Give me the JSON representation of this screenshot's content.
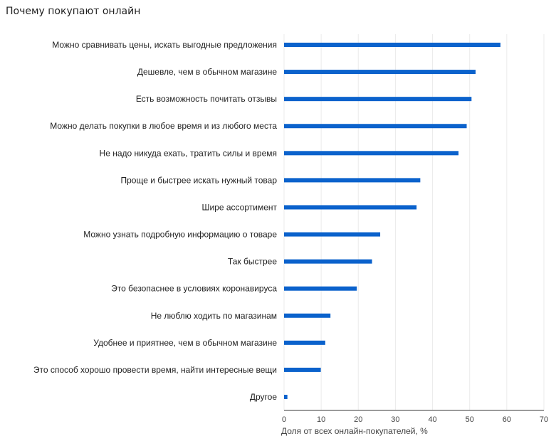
{
  "chart_data": {
    "type": "bar",
    "orientation": "horizontal",
    "title": "Почему покупают онлайн",
    "xlabel": "Доля от всех онлайн-покупателей, %",
    "ylabel": "",
    "xlim": [
      0,
      70
    ],
    "xticks": [
      0,
      10,
      20,
      30,
      40,
      50,
      60,
      70
    ],
    "grid": true,
    "legend": "none",
    "bar_color": "#0b62cc",
    "categories": [
      "Можно сравнивать цены, искать выгодные предложения",
      "Дешевле, чем в обычном магазине",
      "Есть возможность почитать отзывы",
      "Можно делать покупки в любое время и из любого места",
      "Не надо никуда ехать, тратить силы и время",
      "Проще и быстрее искать нужный товар",
      "Шире ассортимент",
      "Можно узнать подробную информацию о товаре",
      "Так быстрее",
      "Это безопаснее в условиях коронавируса",
      "Не люблю ходить по магазинам",
      "Удобнее и приятнее, чем в обычном магазине",
      "Это способ хорошо провести время, найти интересные вещи",
      "Другое"
    ],
    "values": [
      58.3,
      51.6,
      50.5,
      49.2,
      47.0,
      36.7,
      35.7,
      25.9,
      23.7,
      19.6,
      12.5,
      11.1,
      9.9,
      0.9
    ]
  }
}
